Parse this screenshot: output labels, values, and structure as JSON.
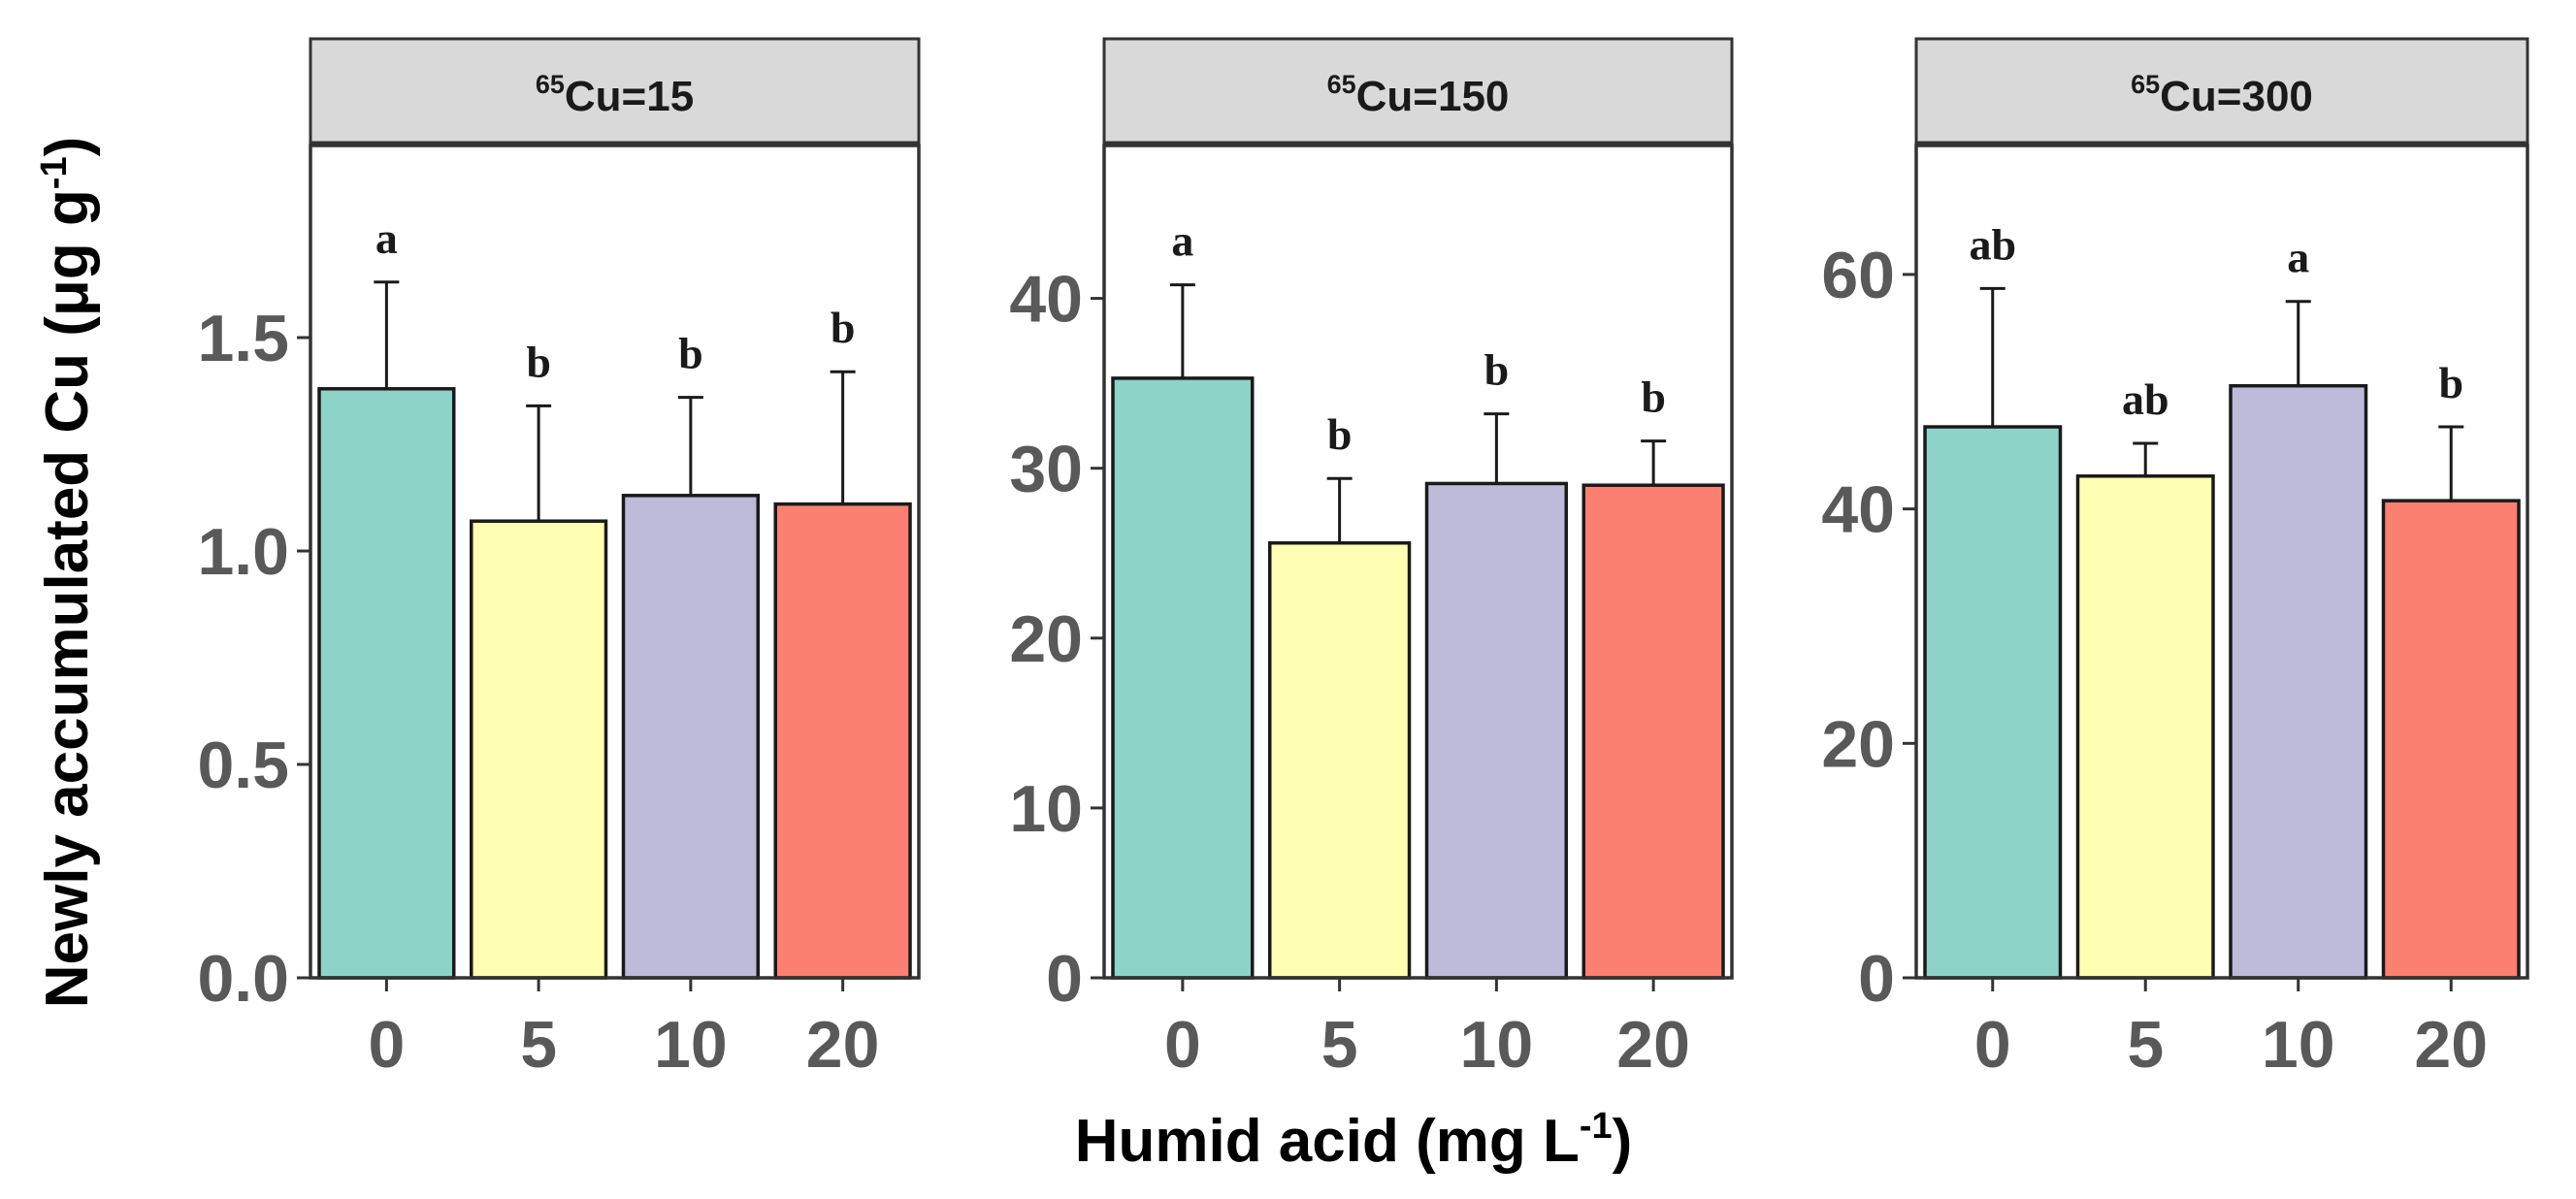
{
  "chart_data": {
    "type": "bar",
    "xlabel": "Humid acid (mg L",
    "xlabel_sup": "-1",
    "xlabel_close": ")",
    "ylabel": "Newly accumulated Cu (μg g",
    "ylabel_sup": "-1",
    "ylabel_close": ")",
    "categories": [
      "0",
      "5",
      "10",
      "20"
    ],
    "colors": [
      "#8dd3c7",
      "#ffffb3",
      "#bebada",
      "#fb8072"
    ],
    "panels": [
      {
        "strip_sup": "65",
        "strip_label": "Cu=15",
        "ylim": [
          0,
          1.95
        ],
        "yticks": [
          0.0,
          0.5,
          1.0,
          1.5
        ],
        "ytick_labels": [
          "0.0",
          "0.5",
          "1.0",
          "1.5"
        ],
        "values": [
          1.38,
          1.07,
          1.13,
          1.11
        ],
        "errors": [
          0.25,
          0.27,
          0.23,
          0.31
        ],
        "letters": [
          "a",
          "b",
          "b",
          "b"
        ]
      },
      {
        "strip_sup": "65",
        "strip_label": "Cu=150",
        "ylim": [
          0,
          49
        ],
        "yticks": [
          0,
          10,
          20,
          30,
          40
        ],
        "ytick_labels": [
          "0",
          "10",
          "20",
          "30",
          "40"
        ],
        "values": [
          35.3,
          25.6,
          29.1,
          29.0
        ],
        "errors": [
          5.5,
          3.8,
          4.1,
          2.6
        ],
        "letters": [
          "a",
          "b",
          "b",
          "b"
        ]
      },
      {
        "strip_sup": "65",
        "strip_label": "Cu=300",
        "ylim": [
          0,
          71
        ],
        "yticks": [
          0,
          20,
          40,
          60
        ],
        "ytick_labels": [
          "0",
          "20",
          "40",
          "60"
        ],
        "values": [
          47.0,
          42.8,
          50.5,
          40.7
        ],
        "errors": [
          11.8,
          2.8,
          7.2,
          6.3
        ],
        "letters": [
          "ab",
          "ab",
          "a",
          "b"
        ]
      }
    ]
  }
}
